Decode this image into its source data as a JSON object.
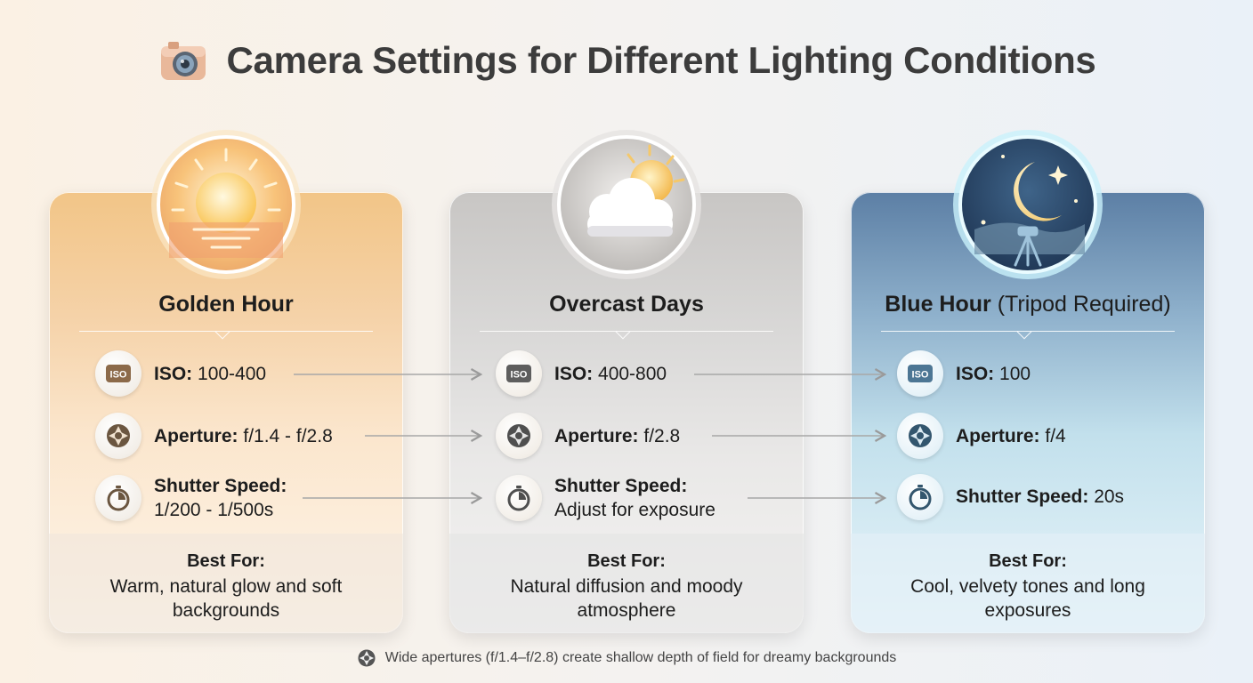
{
  "header": {
    "title": "Camera Settings for Different Lighting Conditions",
    "icon": "camera-icon"
  },
  "cards": [
    {
      "id": "golden",
      "title": "Golden Hour",
      "subtitle": "",
      "icon": "sunset-icon",
      "iso_label": "ISO:",
      "iso_value": "100-400",
      "aperture_label": "Aperture:",
      "aperture_value": "f/1.4 - f/2.8",
      "shutter_label": "Shutter Speed:",
      "shutter_value": "1/200 - 1/500s",
      "best_label": "Best For:",
      "best_text": "Warm, natural glow and soft backgrounds"
    },
    {
      "id": "overcast",
      "title": "Overcast Days",
      "subtitle": "",
      "icon": "cloud-sun-icon",
      "iso_label": "ISO:",
      "iso_value": "400-800",
      "aperture_label": "Aperture:",
      "aperture_value": "f/2.8",
      "shutter_label": "Shutter Speed:",
      "shutter_value": "Adjust for exposure",
      "best_label": "Best For:",
      "best_text": "Natural diffusion and moody atmosphere"
    },
    {
      "id": "blue",
      "title": "Blue Hour",
      "subtitle": "(Tripod Required)",
      "icon": "moon-tripod-icon",
      "iso_label": "ISO:",
      "iso_value": "100",
      "aperture_label": "Aperture:",
      "aperture_value": "f/4",
      "shutter_label": "Shutter Speed:",
      "shutter_value": "20s",
      "best_label": "Best For:",
      "best_text": "Cool, velvety tones and long exposures"
    }
  ],
  "iso_badge": "ISO",
  "footnote": {
    "icon": "aperture-icon",
    "text": "Wide apertures (f/1.4–f/2.8) create shallow depth of field for dreamy backgrounds"
  },
  "colors": {
    "golden": "#f2c587",
    "overcast": "#c8c6c4",
    "blue": "#5c7fa5",
    "arrow": "#9a9a9a"
  }
}
